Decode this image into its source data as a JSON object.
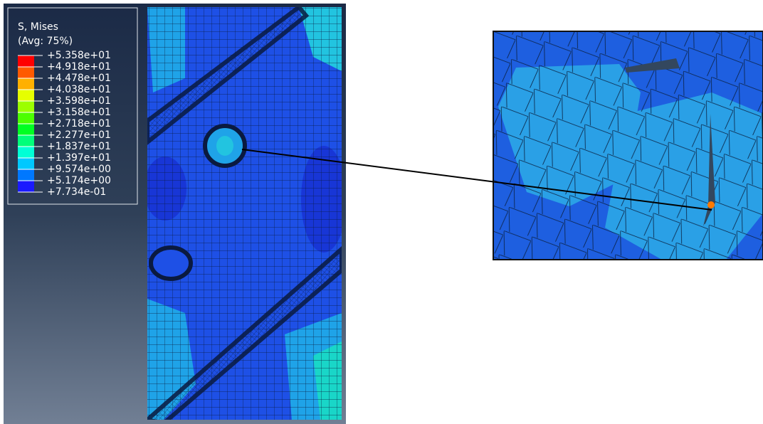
{
  "legend": {
    "title": "S, Mises",
    "subtitle": "(Avg: 75%)",
    "labels": [
      "+5.358e+01",
      "+4.918e+01",
      "+4.478e+01",
      "+4.038e+01",
      "+3.598e+01",
      "+3.158e+01",
      "+2.718e+01",
      "+2.277e+01",
      "+1.837e+01",
      "+1.397e+01",
      "+9.574e+00",
      "+5.174e+00",
      "+7.734e-01"
    ],
    "colors": [
      "#ff0000",
      "#ff5a00",
      "#ffb000",
      "#e6ff00",
      "#9cff00",
      "#4cff00",
      "#00ff22",
      "#00ff7a",
      "#00ffd6",
      "#00c8ff",
      "#0078ff",
      "#1a1aff"
    ]
  }
}
